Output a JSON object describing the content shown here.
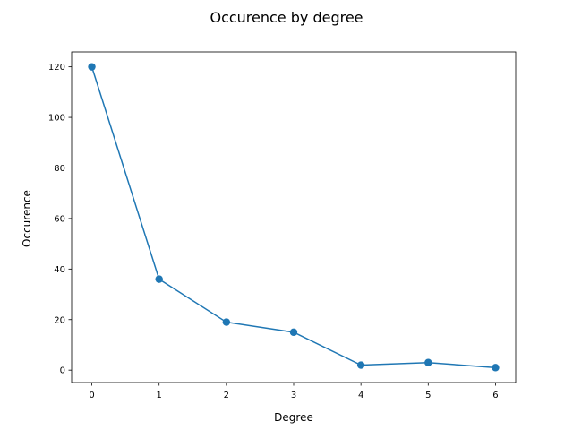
{
  "chart_data": {
    "type": "line",
    "title": "Occurence by degree",
    "xlabel": "Degree",
    "ylabel": "Occurence",
    "x": [
      0,
      1,
      2,
      3,
      4,
      5,
      6
    ],
    "series": [
      {
        "values": [
          120,
          36,
          19,
          15,
          2,
          3,
          1
        ],
        "color": "#1f77b4",
        "marker": "circle"
      }
    ],
    "xlim": [
      -0.3,
      6.3
    ],
    "ylim": [
      -4.9,
      125.9
    ],
    "xticks": [
      0,
      1,
      2,
      3,
      4,
      5,
      6
    ],
    "yticks": [
      0,
      20,
      40,
      60,
      80,
      100,
      120
    ],
    "grid": false,
    "legend": "none"
  }
}
